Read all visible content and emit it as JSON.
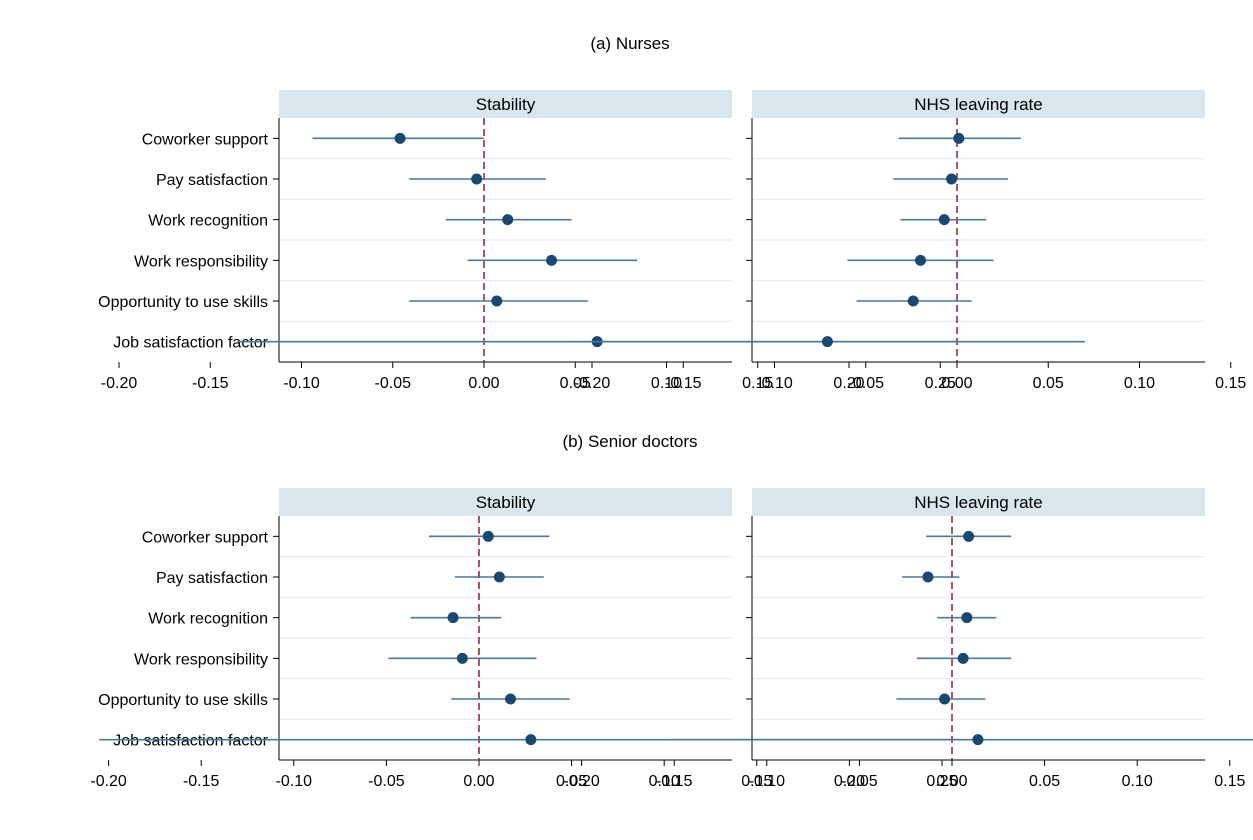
{
  "chart_data": [
    {
      "type": "scatter",
      "title": "(a) Nurses",
      "categories": [
        "Coworker support",
        "Pay satisfaction",
        "Work recognition",
        "Work responsibility",
        "Opportunity to use skills",
        "Job satisfaction factor"
      ],
      "xlim": [
        -0.23,
        0.27
      ],
      "xticks": [
        "-0.20",
        "-0.15",
        "-0.10",
        "-0.05",
        "0.00",
        "0.05",
        "0.10",
        "0.15",
        "0.20",
        "0.25"
      ],
      "reference_line": 0,
      "grid": true,
      "panels": [
        {
          "name": "Stability",
          "estimate": [
            -0.046,
            -0.004,
            0.013,
            0.037,
            0.007,
            0.062
          ],
          "ci_low": [
            -0.094,
            -0.041,
            -0.021,
            -0.009,
            -0.041,
            -0.135
          ],
          "ci_high": [
            0.0,
            0.034,
            0.048,
            0.084,
            0.057,
            0.26
          ]
        },
        {
          "name": "NHS leaving rate",
          "estimate": [
            0.001,
            -0.003,
            -0.007,
            -0.02,
            -0.024,
            -0.071
          ],
          "ci_low": [
            -0.032,
            -0.035,
            -0.031,
            -0.06,
            -0.055,
            -0.213
          ],
          "ci_high": [
            0.035,
            0.028,
            0.016,
            0.02,
            0.008,
            0.07
          ]
        }
      ]
    },
    {
      "type": "scatter",
      "title": "(b) Senior doctors",
      "categories": [
        "Coworker support",
        "Pay satisfaction",
        "Work recognition",
        "Work responsibility",
        "Opportunity to use skills",
        "Job satisfaction factor"
      ],
      "xlim": [
        -0.23,
        0.27
      ],
      "xticks": [
        "-0.20",
        "-0.15",
        "-0.10",
        "-0.05",
        "0.00",
        "0.05",
        "0.10",
        "0.15",
        "0.20",
        "0.25"
      ],
      "reference_line": 0,
      "grid": true,
      "panels": [
        {
          "name": "Stability",
          "estimate": [
            0.005,
            0.011,
            -0.014,
            -0.009,
            0.017,
            0.028
          ],
          "ci_low": [
            -0.027,
            -0.013,
            -0.037,
            -0.049,
            -0.015,
            -0.205
          ],
          "ci_high": [
            0.038,
            0.035,
            0.012,
            0.031,
            0.049,
            0.26
          ]
        },
        {
          "name": "NHS leaving rate",
          "estimate": [
            0.009,
            -0.013,
            0.008,
            0.006,
            -0.004,
            0.014
          ],
          "ci_low": [
            -0.014,
            -0.027,
            -0.008,
            -0.019,
            -0.03,
            -0.152
          ],
          "ci_high": [
            0.032,
            0.004,
            0.024,
            0.032,
            0.018,
            0.18
          ]
        }
      ]
    }
  ]
}
